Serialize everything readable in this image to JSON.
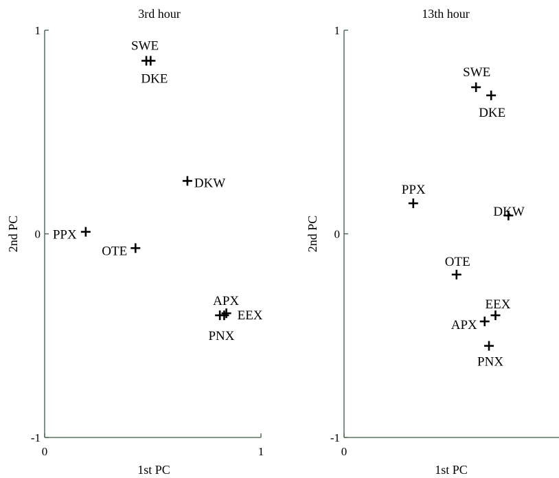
{
  "chart_data": [
    {
      "type": "scatter",
      "title": "3rd hour",
      "xlabel": "1st PC",
      "ylabel": "2nd PC",
      "xlim": [
        0,
        1
      ],
      "ylim": [
        -1,
        1
      ],
      "x_ticks": [
        "0",
        "1"
      ],
      "y_ticks": [
        "1",
        "0",
        "-1"
      ],
      "points": [
        {
          "label": "SWE",
          "x": 0.47,
          "y": 0.85
        },
        {
          "label": "DKE",
          "x": 0.49,
          "y": 0.85
        },
        {
          "label": "DKW",
          "x": 0.66,
          "y": 0.26
        },
        {
          "label": "PPX",
          "x": 0.19,
          "y": 0.01
        },
        {
          "label": "OTE",
          "x": 0.42,
          "y": -0.07
        },
        {
          "label": "APX",
          "x": 0.81,
          "y": -0.4
        },
        {
          "label": "EEX",
          "x": 0.84,
          "y": -0.39
        },
        {
          "label": "PNX",
          "x": 0.83,
          "y": -0.4
        }
      ]
    },
    {
      "type": "scatter",
      "title": "13th hour",
      "xlabel": "1st PC",
      "ylabel": "2nd PC",
      "xlim": [
        0,
        1
      ],
      "ylim": [
        -1,
        1
      ],
      "x_ticks": [
        "0"
      ],
      "y_ticks": [
        "1",
        "0",
        "-1"
      ],
      "points": [
        {
          "label": "SWE",
          "x": 0.61,
          "y": 0.72
        },
        {
          "label": "DKE",
          "x": 0.68,
          "y": 0.68
        },
        {
          "label": "PPX",
          "x": 0.32,
          "y": 0.15
        },
        {
          "label": "DKW",
          "x": 0.76,
          "y": 0.09
        },
        {
          "label": "OTE",
          "x": 0.52,
          "y": -0.2
        },
        {
          "label": "EEX",
          "x": 0.7,
          "y": -0.4
        },
        {
          "label": "APX",
          "x": 0.65,
          "y": -0.43
        },
        {
          "label": "PNX",
          "x": 0.67,
          "y": -0.55
        }
      ]
    }
  ]
}
